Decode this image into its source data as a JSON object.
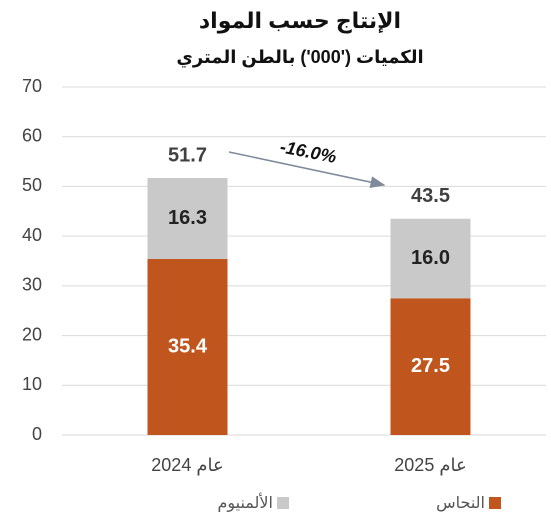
{
  "chart_data": {
    "type": "stacked_bar",
    "title": "الإنتاج حسب المواد",
    "subtitle": "الكميات ('000') بالطن المتري",
    "categories": [
      "عام 2024",
      "عام 2025"
    ],
    "series": [
      {
        "name": "النحاس",
        "color": "#c0561e",
        "values": [
          35.4,
          27.5
        ]
      },
      {
        "name": "الألمنيوم",
        "color": "#c9c9c9",
        "values": [
          16.3,
          16.0
        ],
        "value_labels": [
          "16.3",
          "16.0"
        ]
      }
    ],
    "totals": [
      51.7,
      43.5
    ],
    "annotation": "-16.0%",
    "ylim": [
      0,
      70
    ],
    "yticks": [
      0,
      10,
      20,
      30,
      40,
      50,
      60,
      70
    ],
    "grid": true
  }
}
